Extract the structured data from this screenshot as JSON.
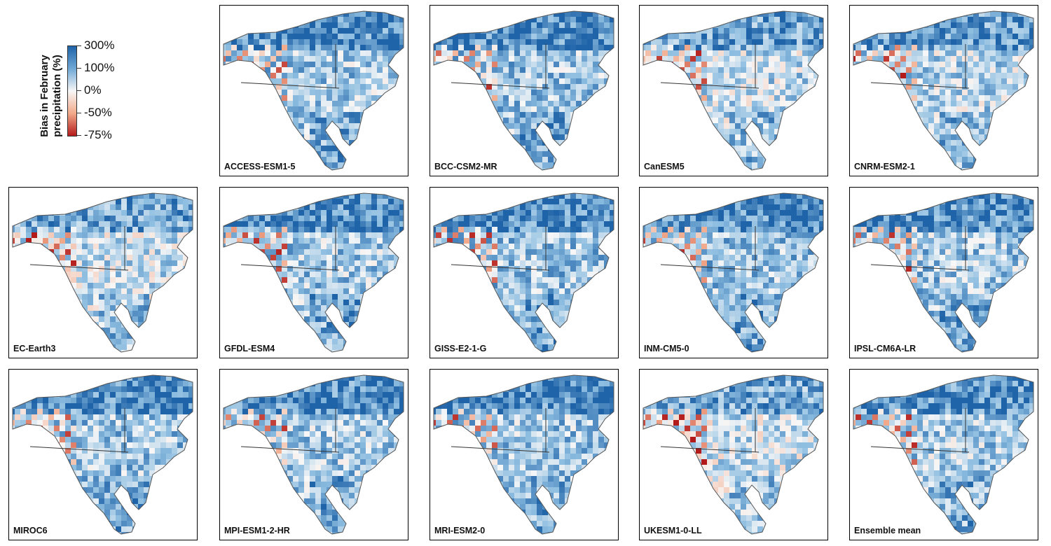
{
  "legend": {
    "title_line1": "Bias in February",
    "title_line2": "precipitation (%)",
    "ticks": [
      "300%",
      "100%",
      "0%",
      "-50%",
      "-75%"
    ],
    "colors": {
      "strong_pos": "#1f63a8",
      "pos": "#8dbde0",
      "zero": "#f7f7f7",
      "neg": "#f2a98a",
      "strong_neg": "#b31b1b"
    }
  },
  "panels": [
    {
      "label": "ACCESS-ESM1-5",
      "bias": 0.55
    },
    {
      "label": "BCC-CSM2-MR",
      "bias": 0.6
    },
    {
      "label": "CanESM5",
      "bias": 0.35
    },
    {
      "label": "CNRM-ESM2-1",
      "bias": 0.4
    },
    {
      "label": "EC-Earth3",
      "bias": 0.3
    },
    {
      "label": "GFDL-ESM4",
      "bias": 0.55
    },
    {
      "label": "GISS-E2-1-G",
      "bias": 0.6
    },
    {
      "label": "INM-CM5-0",
      "bias": 0.6
    },
    {
      "label": "IPSL-CM6A-LR",
      "bias": 0.55
    },
    {
      "label": "MIROC6",
      "bias": 0.6
    },
    {
      "label": "MPI-ESM1-2-HR",
      "bias": 0.55
    },
    {
      "label": "MRI-ESM2-0",
      "bias": 0.55
    },
    {
      "label": "UKESM1-0-LL",
      "bias": 0.25
    },
    {
      "label": "Ensemble mean",
      "bias": 0.5
    }
  ]
}
